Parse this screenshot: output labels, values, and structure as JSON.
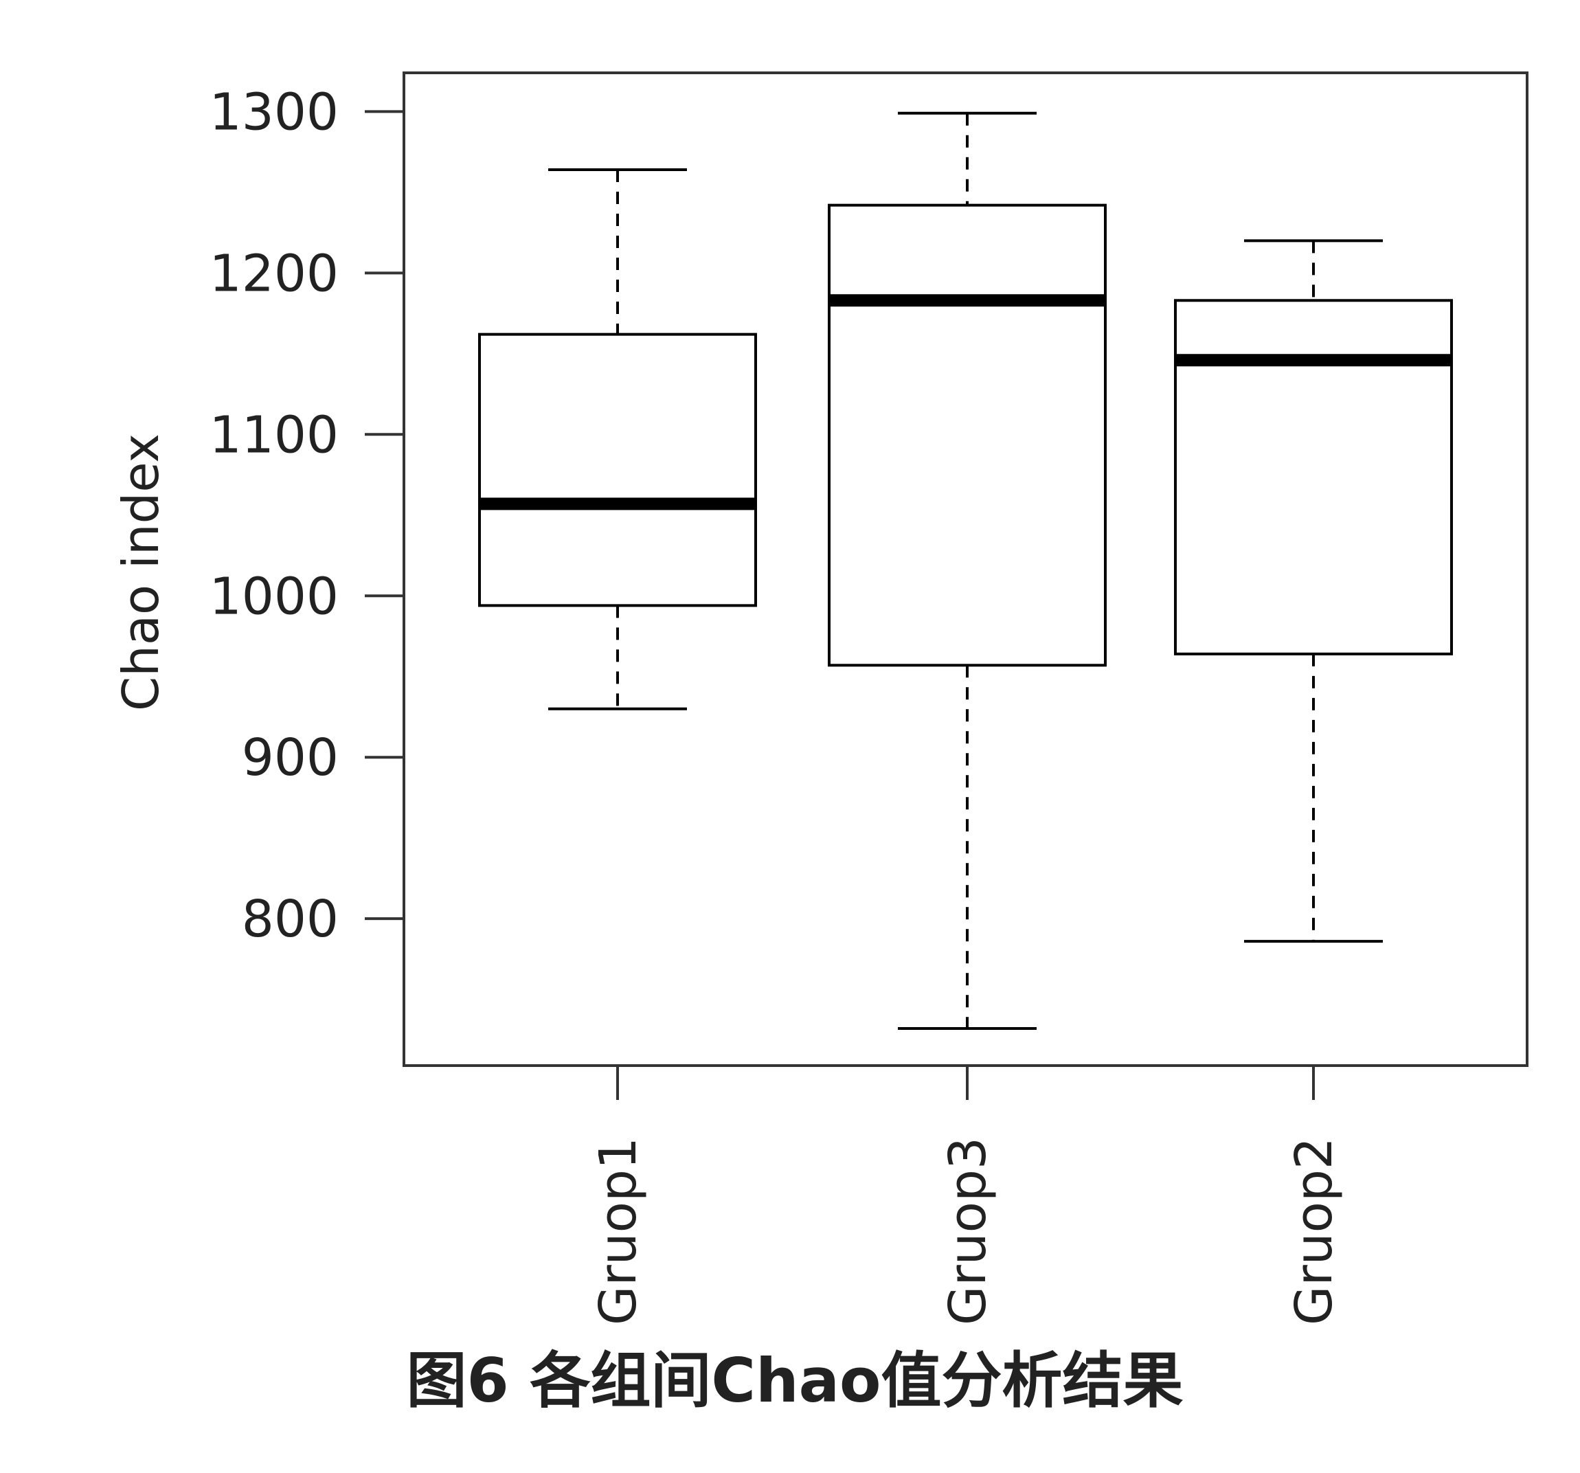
{
  "chart_data": {
    "type": "box",
    "caption": "图6 各组间Chao值分析结果",
    "ylabel": "Chao index",
    "categories": [
      "Gruop1",
      "Gruop3",
      "Gruop2"
    ],
    "whisker_low": [
      930,
      732,
      786
    ],
    "q1": [
      994,
      957,
      964
    ],
    "median": [
      1057,
      1183,
      1146
    ],
    "q3": [
      1162,
      1242,
      1183
    ],
    "whisker_high": [
      1264,
      1299,
      1220
    ],
    "ylim": [
      709,
      1324
    ],
    "yticks": [
      800,
      900,
      1000,
      1100,
      1200,
      1300
    ],
    "color": "#000000"
  }
}
